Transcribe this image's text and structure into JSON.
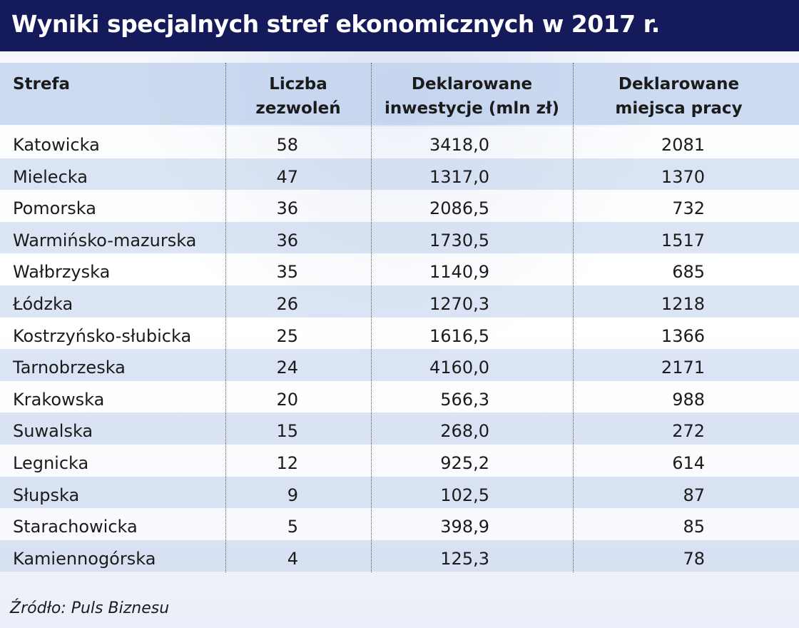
{
  "header": {
    "title": "Wyniki specjalnych stref ekonomicznych w 2017 r."
  },
  "table": {
    "columns": [
      [
        "Strefa"
      ],
      [
        "Liczba",
        "zezwoleń"
      ],
      [
        "Deklarowane",
        "inwestycje (mln zł)"
      ],
      [
        "Deklarowane",
        "miejsca pracy"
      ]
    ],
    "rows": [
      [
        "Katowicka",
        "58",
        "3418,0",
        "2081"
      ],
      [
        "Mielecka",
        "47",
        "1317,0",
        "1370"
      ],
      [
        "Pomorska",
        "36",
        "2086,5",
        "732"
      ],
      [
        "Warmińsko-mazurska",
        "36",
        "1730,5",
        "1517"
      ],
      [
        "Wałbrzyska",
        "35",
        "1140,9",
        "685"
      ],
      [
        "Łódzka",
        "26",
        "1270,3",
        "1218"
      ],
      [
        "Kostrzyńsko-słubicka",
        "25",
        "1616,5",
        "1366"
      ],
      [
        "Tarnobrzeska",
        "24",
        "4160,0",
        "2171"
      ],
      [
        "Krakowska",
        "20",
        "566,3",
        "988"
      ],
      [
        "Suwalska",
        "15",
        "268,0",
        "272"
      ],
      [
        "Legnicka",
        "12",
        "925,2",
        "614"
      ],
      [
        "Słupska",
        "9",
        "102,5",
        "87"
      ],
      [
        "Starachowicka",
        "5",
        "398,9",
        "85"
      ],
      [
        "Kamiennogórska",
        "4",
        "125,3",
        "78"
      ]
    ]
  },
  "footer": {
    "source": "Źródło: Puls Biznesu"
  }
}
